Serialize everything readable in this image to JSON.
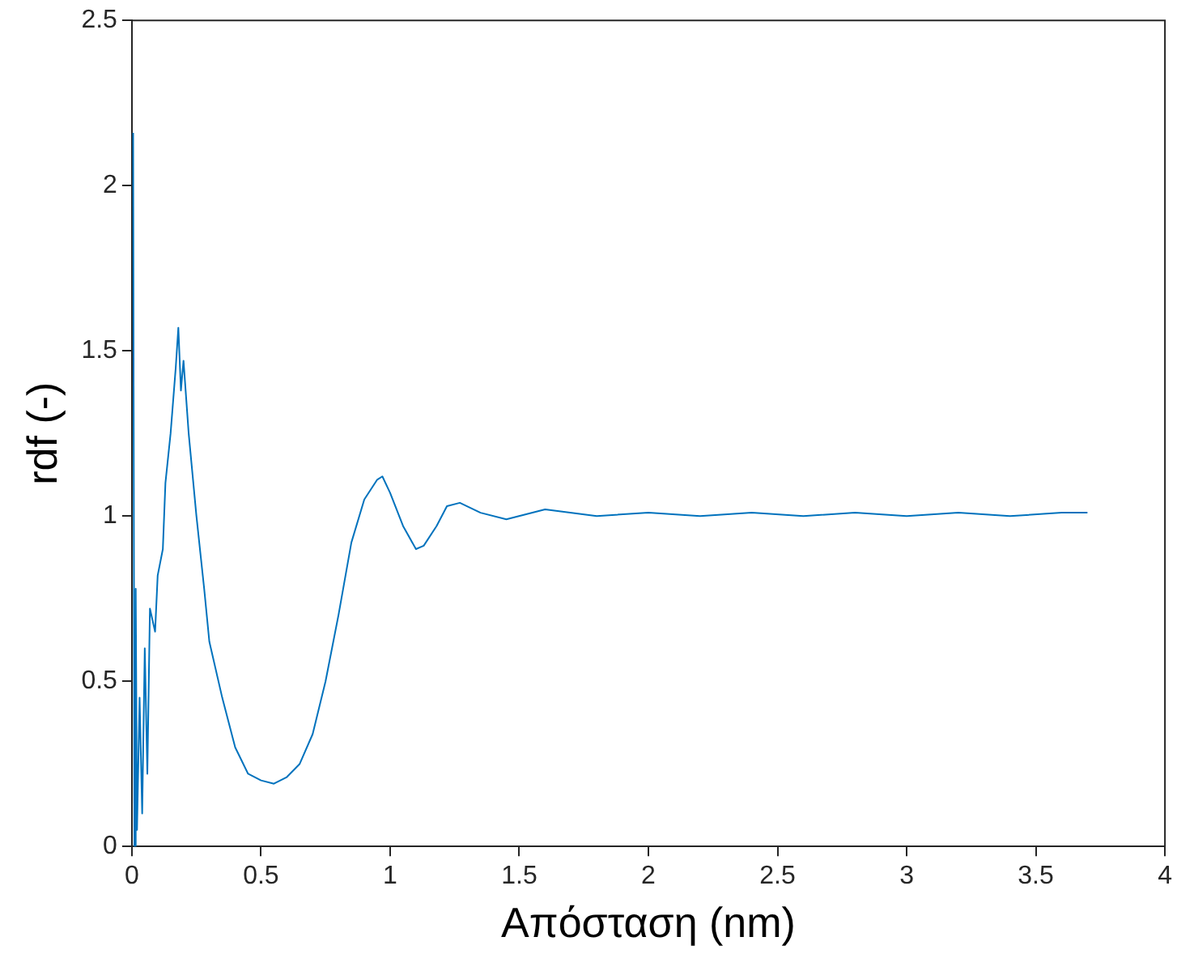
{
  "chart_data": {
    "type": "line",
    "xlabel": "Απόσταση (nm)",
    "ylabel": "rdf (-)",
    "xlim": [
      0,
      4
    ],
    "xticks": [
      0,
      0.5,
      1,
      1.5,
      2,
      2.5,
      3,
      3.5,
      4
    ],
    "ylim": [
      0,
      2.5
    ],
    "yticks": [
      0,
      0.5,
      1,
      1.5,
      2,
      2.5
    ],
    "grid": false,
    "legend": false,
    "marker": "none",
    "line_style": "solid",
    "series": [
      {
        "color": "#0072bd",
        "x": [
          0.005,
          0.01,
          0.015,
          0.02,
          0.03,
          0.04,
          0.05,
          0.06,
          0.07,
          0.09,
          0.1,
          0.12,
          0.13,
          0.15,
          0.17,
          0.18,
          0.19,
          0.2,
          0.22,
          0.25,
          0.28,
          0.3,
          0.35,
          0.4,
          0.45,
          0.5,
          0.55,
          0.6,
          0.65,
          0.7,
          0.75,
          0.8,
          0.85,
          0.9,
          0.95,
          0.97,
          1.0,
          1.05,
          1.1,
          1.13,
          1.18,
          1.22,
          1.27,
          1.35,
          1.45,
          1.6,
          1.8,
          2.0,
          2.2,
          2.4,
          2.6,
          2.8,
          3.0,
          3.2,
          3.4,
          3.6,
          3.7
        ],
        "values": [
          2.16,
          0,
          0.78,
          0.05,
          0.45,
          0.1,
          0.6,
          0.22,
          0.72,
          0.65,
          0.82,
          0.9,
          1.1,
          1.25,
          1.45,
          1.57,
          1.38,
          1.47,
          1.25,
          1.0,
          0.78,
          0.62,
          0.45,
          0.3,
          0.22,
          0.2,
          0.19,
          0.21,
          0.25,
          0.34,
          0.5,
          0.7,
          0.92,
          1.05,
          1.11,
          1.12,
          1.07,
          0.97,
          0.9,
          0.91,
          0.97,
          1.03,
          1.04,
          1.01,
          0.99,
          1.02,
          1.0,
          1.01,
          1.0,
          1.01,
          1.0,
          1.01,
          1.0,
          1.01,
          1.0,
          1.01,
          1.01
        ]
      }
    ]
  }
}
